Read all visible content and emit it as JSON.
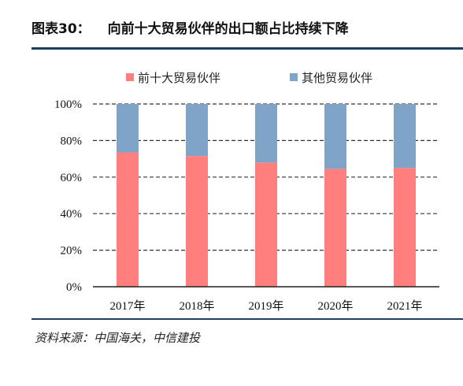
{
  "figure": {
    "label": "图表30：",
    "title": "向前十大贸易伙伴的出口额占比持续下降",
    "source": "资料来源：中国海关，中信建投"
  },
  "chart_data": {
    "type": "bar",
    "stacked": true,
    "percent": true,
    "categories": [
      "2017年",
      "2018年",
      "2019年",
      "2020年",
      "2021年"
    ],
    "series": [
      {
        "name": "前十大贸易伙伴",
        "values": [
          73.5,
          71.5,
          68,
          64.5,
          65
        ],
        "color": "#ff7f7f"
      },
      {
        "name": "其他贸易伙伴",
        "values": [
          26.5,
          28.5,
          32,
          35.5,
          35
        ],
        "color": "#7fa4c8"
      }
    ],
    "ylim": [
      0,
      100
    ],
    "yticks": [
      "0%",
      "20%",
      "40%",
      "60%",
      "80%",
      "100%"
    ],
    "ytick_values": [
      0,
      20,
      40,
      60,
      80,
      100
    ],
    "grid": "dashed-horizontal",
    "legend_position": "top"
  }
}
